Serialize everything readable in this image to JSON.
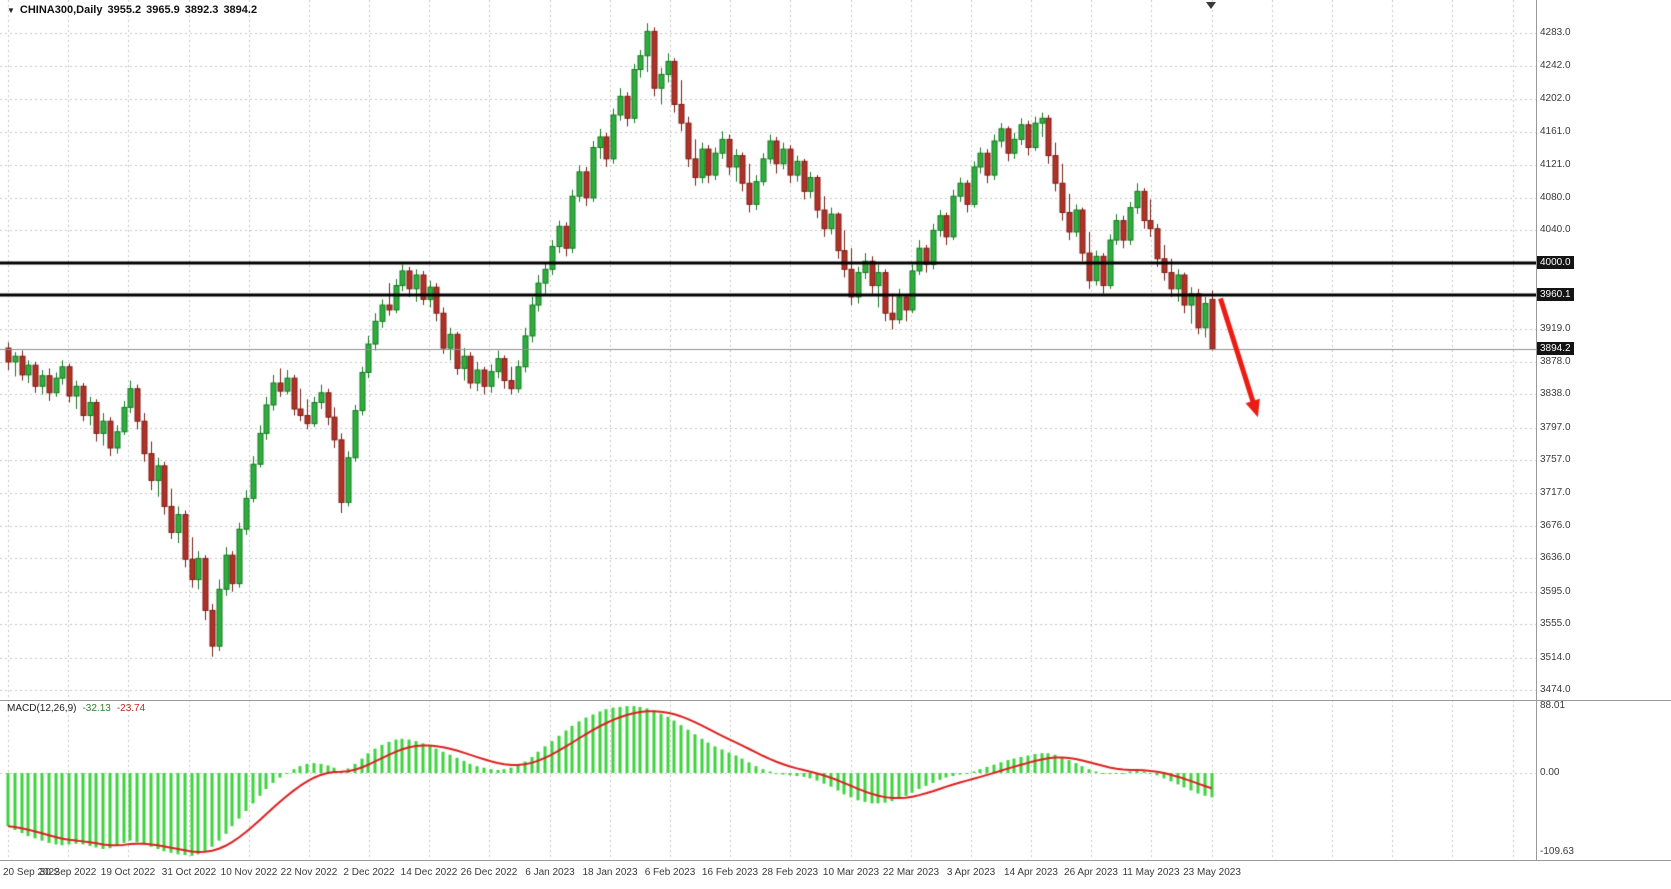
{
  "window": {
    "info_line": {
      "symbol_period": "CHINA300,Daily",
      "open": "3955.2",
      "high": "3965.9",
      "low": "3892.3",
      "close": "3894.2"
    }
  },
  "indicator": {
    "label": "MACD(12,26,9)",
    "main_value": "-32.13",
    "signal_value": "-23.74",
    "axis_labels": [
      "88.01",
      "0.00",
      "-109.63"
    ]
  },
  "price_axis": {
    "ticks": [
      "4283.0",
      "4242.0",
      "4202.0",
      "4161.0",
      "4121.0",
      "4080.0",
      "4040.0",
      "3919.0",
      "3878.0",
      "3838.0",
      "3797.0",
      "3757.0",
      "3717.0",
      "3676.0",
      "3636.0",
      "3595.0",
      "3555.0",
      "3514.0",
      "3474.0"
    ],
    "line_labels": [
      "4000.0",
      "3960.1"
    ],
    "bid_label": "3894.2"
  },
  "time_axis": {
    "labels": [
      "20 Sep 2022",
      "30 Sep 2022",
      "19 Oct 2022",
      "31 Oct 2022",
      "10 Nov 2022",
      "22 Nov 2022",
      "2 Dec 2022",
      "14 Dec 2022",
      "26 Dec 2022",
      "6 Jan 2023",
      "18 Jan 2023",
      "6 Feb 2023",
      "16 Feb 2023",
      "28 Feb 2023",
      "10 Mar 2023",
      "22 Mar 2023",
      "3 Apr 2023",
      "14 Apr 2023",
      "26 Apr 2023",
      "11 May 2023",
      "23 May 2023"
    ]
  },
  "chart_data": {
    "type": "candlestick",
    "symbol": "CHINA300",
    "timeframe": "Daily",
    "title": "CHINA300,Daily",
    "price_axis_range": [
      3474.0,
      4283.0
    ],
    "ohlc_current": {
      "open": 3955.2,
      "high": 3965.9,
      "low": 3892.3,
      "close": 3894.2
    },
    "hlines": [
      {
        "price": 4000.0,
        "label": "4000.0"
      },
      {
        "price": 3960.1,
        "label": "3960.1"
      }
    ],
    "bid_price": 3894.2,
    "annotations": [
      {
        "type": "arrow",
        "direction": "down-right",
        "from_bar": 178.3,
        "from_price": 3956,
        "to_bar": 183.8,
        "to_price": 3810,
        "color": "#ec1c12"
      }
    ],
    "candles": [
      [
        3895,
        3902,
        3868,
        3878
      ],
      [
        3878,
        3890,
        3860,
        3885
      ],
      [
        3885,
        3892,
        3855,
        3862
      ],
      [
        3862,
        3880,
        3852,
        3874
      ],
      [
        3874,
        3878,
        3840,
        3848
      ],
      [
        3848,
        3868,
        3838,
        3861
      ],
      [
        3861,
        3870,
        3830,
        3840
      ],
      [
        3840,
        3865,
        3835,
        3858
      ],
      [
        3858,
        3880,
        3850,
        3872
      ],
      [
        3872,
        3876,
        3828,
        3836
      ],
      [
        3836,
        3855,
        3820,
        3848
      ],
      [
        3848,
        3852,
        3805,
        3812
      ],
      [
        3812,
        3835,
        3800,
        3828
      ],
      [
        3828,
        3832,
        3780,
        3790
      ],
      [
        3790,
        3815,
        3775,
        3805
      ],
      [
        3805,
        3810,
        3762,
        3772
      ],
      [
        3772,
        3800,
        3765,
        3792
      ],
      [
        3792,
        3830,
        3788,
        3822
      ],
      [
        3822,
        3855,
        3815,
        3845
      ],
      [
        3845,
        3850,
        3795,
        3805
      ],
      [
        3805,
        3815,
        3755,
        3765
      ],
      [
        3765,
        3780,
        3720,
        3732
      ],
      [
        3732,
        3760,
        3712,
        3750
      ],
      [
        3750,
        3755,
        3690,
        3700
      ],
      [
        3700,
        3722,
        3660,
        3668
      ],
      [
        3668,
        3700,
        3655,
        3690
      ],
      [
        3690,
        3695,
        3625,
        3635
      ],
      [
        3635,
        3662,
        3600,
        3610
      ],
      [
        3610,
        3645,
        3598,
        3636
      ],
      [
        3636,
        3640,
        3560,
        3572
      ],
      [
        3572,
        3580,
        3515,
        3528
      ],
      [
        3528,
        3610,
        3522,
        3598
      ],
      [
        3598,
        3650,
        3590,
        3640
      ],
      [
        3640,
        3645,
        3595,
        3605
      ],
      [
        3605,
        3680,
        3600,
        3672
      ],
      [
        3672,
        3720,
        3665,
        3710
      ],
      [
        3710,
        3762,
        3705,
        3752
      ],
      [
        3752,
        3800,
        3748,
        3790
      ],
      [
        3790,
        3835,
        3782,
        3825
      ],
      [
        3825,
        3862,
        3818,
        3852
      ],
      [
        3852,
        3870,
        3835,
        3842
      ],
      [
        3842,
        3868,
        3838,
        3858
      ],
      [
        3858,
        3862,
        3812,
        3820
      ],
      [
        3820,
        3845,
        3805,
        3812
      ],
      [
        3812,
        3832,
        3795,
        3802
      ],
      [
        3802,
        3835,
        3798,
        3828
      ],
      [
        3828,
        3850,
        3820,
        3840
      ],
      [
        3840,
        3845,
        3800,
        3810
      ],
      [
        3810,
        3822,
        3772,
        3782
      ],
      [
        3782,
        3790,
        3692,
        3705
      ],
      [
        3705,
        3768,
        3700,
        3760
      ],
      [
        3760,
        3825,
        3755,
        3818
      ],
      [
        3818,
        3872,
        3812,
        3865
      ],
      [
        3865,
        3910,
        3858,
        3900
      ],
      [
        3900,
        3938,
        3892,
        3928
      ],
      [
        3928,
        3955,
        3920,
        3948
      ],
      [
        3948,
        3975,
        3935,
        3942
      ],
      [
        3942,
        3980,
        3938,
        3972
      ],
      [
        3972,
        3998,
        3965,
        3990
      ],
      [
        3990,
        3995,
        3958,
        3968
      ],
      [
        3968,
        3992,
        3952,
        3985
      ],
      [
        3985,
        3990,
        3948,
        3955
      ],
      [
        3955,
        3978,
        3945,
        3970
      ],
      [
        3970,
        3975,
        3928,
        3938
      ],
      [
        3938,
        3945,
        3888,
        3895
      ],
      [
        3895,
        3920,
        3880,
        3912
      ],
      [
        3912,
        3915,
        3862,
        3870
      ],
      [
        3870,
        3895,
        3855,
        3885
      ],
      [
        3885,
        3890,
        3845,
        3852
      ],
      [
        3852,
        3878,
        3842,
        3868
      ],
      [
        3868,
        3872,
        3838,
        3848
      ],
      [
        3848,
        3875,
        3840,
        3866
      ],
      [
        3866,
        3892,
        3858,
        3882
      ],
      [
        3882,
        3886,
        3845,
        3855
      ],
      [
        3855,
        3872,
        3838,
        3845
      ],
      [
        3845,
        3880,
        3840,
        3872
      ],
      [
        3872,
        3920,
        3865,
        3910
      ],
      [
        3910,
        3958,
        3902,
        3948
      ],
      [
        3948,
        3985,
        3940,
        3975
      ],
      [
        3975,
        4000,
        3962,
        3992
      ],
      [
        3992,
        4028,
        3985,
        4020
      ],
      [
        4020,
        4052,
        4012,
        4045
      ],
      [
        4045,
        4050,
        4008,
        4018
      ],
      [
        4018,
        4090,
        4012,
        4082
      ],
      [
        4082,
        4120,
        4075,
        4112
      ],
      [
        4112,
        4118,
        4070,
        4080
      ],
      [
        4080,
        4150,
        4075,
        4142
      ],
      [
        4142,
        4165,
        4128,
        4155
      ],
      [
        4155,
        4160,
        4118,
        4128
      ],
      [
        4128,
        4190,
        4122,
        4182
      ],
      [
        4182,
        4215,
        4175,
        4205
      ],
      [
        4205,
        4210,
        4168,
        4178
      ],
      [
        4178,
        4245,
        4172,
        4238
      ],
      [
        4238,
        4262,
        4228,
        4255
      ],
      [
        4255,
        4295,
        4235,
        4285
      ],
      [
        4285,
        4290,
        4205,
        4215
      ],
      [
        4215,
        4240,
        4195,
        4232
      ],
      [
        4232,
        4258,
        4222,
        4248
      ],
      [
        4248,
        4252,
        4185,
        4195
      ],
      [
        4195,
        4225,
        4162,
        4172
      ],
      [
        4172,
        4180,
        4118,
        4128
      ],
      [
        4128,
        4152,
        4095,
        4105
      ],
      [
        4105,
        4148,
        4098,
        4140
      ],
      [
        4140,
        4145,
        4098,
        4108
      ],
      [
        4108,
        4142,
        4102,
        4135
      ],
      [
        4135,
        4162,
        4128,
        4152
      ],
      [
        4152,
        4158,
        4108,
        4118
      ],
      [
        4118,
        4140,
        4100,
        4132
      ],
      [
        4132,
        4136,
        4088,
        4098
      ],
      [
        4098,
        4122,
        4062,
        4072
      ],
      [
        4072,
        4108,
        4065,
        4100
      ],
      [
        4100,
        4135,
        4095,
        4128
      ],
      [
        4128,
        4158,
        4122,
        4150
      ],
      [
        4150,
        4155,
        4110,
        4122
      ],
      [
        4122,
        4148,
        4115,
        4140
      ],
      [
        4140,
        4145,
        4098,
        4108
      ],
      [
        4108,
        4132,
        4100,
        4125
      ],
      [
        4125,
        4128,
        4078,
        4088
      ],
      [
        4088,
        4112,
        4080,
        4105
      ],
      [
        4105,
        4108,
        4055,
        4065
      ],
      [
        4065,
        4082,
        4032,
        4042
      ],
      [
        4042,
        4068,
        4035,
        4060
      ],
      [
        4060,
        4062,
        4005,
        4015
      ],
      [
        4015,
        4040,
        3982,
        3992
      ],
      [
        3992,
        4018,
        3948,
        3958
      ],
      [
        3958,
        3995,
        3950,
        3988
      ],
      [
        3988,
        4012,
        3980,
        4002
      ],
      [
        4002,
        4008,
        3962,
        3972
      ],
      [
        3972,
        3998,
        3945,
        3988
      ],
      [
        3988,
        3992,
        3928,
        3938
      ],
      [
        3938,
        3962,
        3918,
        3930
      ],
      [
        3930,
        3968,
        3925,
        3958
      ],
      [
        3958,
        3962,
        3928,
        3942
      ],
      [
        3942,
        3998,
        3938,
        3990
      ],
      [
        3990,
        4028,
        3985,
        4018
      ],
      [
        4018,
        4022,
        3988,
        3998
      ],
      [
        3998,
        4048,
        3992,
        4040
      ],
      [
        4040,
        4065,
        4032,
        4058
      ],
      [
        4058,
        4062,
        4022,
        4032
      ],
      [
        4032,
        4090,
        4028,
        4082
      ],
      [
        4082,
        4105,
        4075,
        4098
      ],
      [
        4098,
        4102,
        4062,
        4072
      ],
      [
        4072,
        4125,
        4068,
        4118
      ],
      [
        4118,
        4142,
        4110,
        4135
      ],
      [
        4135,
        4140,
        4098,
        4108
      ],
      [
        4108,
        4158,
        4102,
        4150
      ],
      [
        4150,
        4172,
        4142,
        4165
      ],
      [
        4165,
        4168,
        4125,
        4135
      ],
      [
        4135,
        4160,
        4128,
        4152
      ],
      [
        4152,
        4178,
        4145,
        4170
      ],
      [
        4170,
        4175,
        4132,
        4142
      ],
      [
        4142,
        4180,
        4138,
        4172
      ],
      [
        4172,
        4185,
        4155,
        4178
      ],
      [
        4178,
        4182,
        4122,
        4132
      ],
      [
        4132,
        4148,
        4088,
        4098
      ],
      [
        4098,
        4122,
        4052,
        4062
      ],
      [
        4062,
        4085,
        4028,
        4038
      ],
      [
        4038,
        4072,
        4032,
        4065
      ],
      [
        4065,
        4068,
        4002,
        4012
      ],
      [
        4012,
        4038,
        3968,
        3978
      ],
      [
        3978,
        4015,
        3972,
        4008
      ],
      [
        4008,
        4012,
        3962,
        3972
      ],
      [
        3972,
        4035,
        3968,
        4028
      ],
      [
        4028,
        4060,
        4022,
        4052
      ],
      [
        4052,
        4058,
        4018,
        4028
      ],
      [
        4028,
        4075,
        4022,
        4068
      ],
      [
        4068,
        4098,
        4060,
        4088
      ],
      [
        4088,
        4092,
        4042,
        4052
      ],
      [
        4052,
        4078,
        4032,
        4042
      ],
      [
        4042,
        4048,
        3995,
        4005
      ],
      [
        4005,
        4022,
        3978,
        3988
      ],
      [
        3988,
        4005,
        3958,
        3968
      ],
      [
        3968,
        3992,
        3952,
        3985
      ],
      [
        3985,
        3988,
        3938,
        3948
      ],
      [
        3948,
        3970,
        3925,
        3962
      ],
      [
        3962,
        3968,
        3912,
        3920
      ],
      [
        3920,
        3958,
        3908,
        3950
      ],
      [
        3955,
        3966,
        3892,
        3894
      ]
    ],
    "indicator": {
      "type": "MACD",
      "params": [
        12,
        26,
        9
      ],
      "axis_range": [
        -109.63,
        88.01
      ],
      "last_main": -32.13,
      "last_signal": -23.74,
      "main": [
        -70,
        -75,
        -79,
        -83,
        -86,
        -89,
        -92,
        -94,
        -95,
        -94,
        -93,
        -94,
        -96,
        -98,
        -100,
        -99,
        -96,
        -92,
        -89,
        -91,
        -94,
        -97,
        -100,
        -103,
        -105,
        -107,
        -108,
        -109,
        -107,
        -103,
        -97,
        -89,
        -80,
        -70,
        -60,
        -50,
        -40,
        -30,
        -21,
        -13,
        -6,
        0,
        5,
        9,
        12,
        13,
        12,
        10,
        7,
        2,
        6,
        12,
        19,
        26,
        32,
        37,
        41,
        44,
        45,
        44,
        42,
        39,
        36,
        32,
        28,
        24,
        20,
        16,
        12,
        9,
        7,
        5,
        4,
        5,
        7,
        10,
        15,
        21,
        28,
        35,
        42,
        49,
        56,
        62,
        68,
        73,
        77,
        81,
        84,
        86,
        87,
        88,
        88,
        87,
        85,
        82,
        78,
        74,
        69,
        63,
        57,
        51,
        45,
        40,
        35,
        31,
        27,
        23,
        19,
        14,
        9,
        5,
        2,
        0,
        -2,
        -3,
        -4,
        -5,
        -7,
        -10,
        -14,
        -18,
        -23,
        -28,
        -32,
        -36,
        -38,
        -40,
        -40,
        -39,
        -37,
        -34,
        -30,
        -26,
        -21,
        -17,
        -13,
        -9,
        -6,
        -4,
        -2,
        0,
        2,
        5,
        8,
        11,
        14,
        17,
        19,
        21,
        23,
        25,
        26,
        26,
        24,
        21,
        17,
        13,
        9,
        5,
        2,
        0,
        -1,
        -1,
        0,
        2,
        3,
        2,
        0,
        -3,
        -7,
        -11,
        -15,
        -19,
        -23,
        -27,
        -30,
        -32
      ]
    }
  },
  "colors": {
    "background": "#ffffff",
    "grid": "#c8c8c8",
    "bull_fill": "#2fae3e",
    "bull_border": "#157a22",
    "bear_fill": "#b03228",
    "bear_border": "#7c1f16",
    "hline": "#000000",
    "bid_line": "#909090",
    "arrow": "#ec1c12",
    "macd_hist": "#3fd33f",
    "macd_signal": "#dd2020",
    "axis_text": "#3a3a3a",
    "label_bg": "#141414"
  }
}
